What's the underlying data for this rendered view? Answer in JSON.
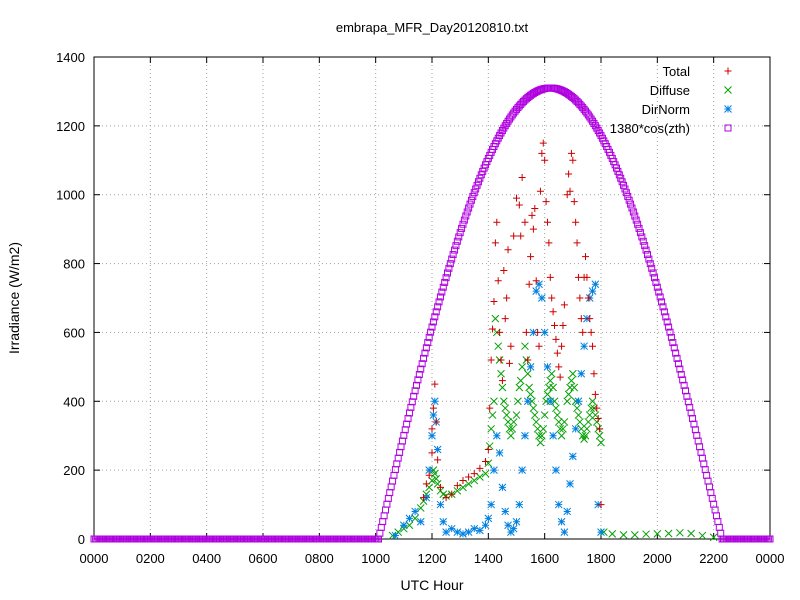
{
  "chart_data": {
    "type": "scatter",
    "title": "embrapa_MFR_Day20120810.txt",
    "xlabel": "UTC Hour",
    "ylabel": "Irradiance (W/m2)",
    "xlim": [
      0,
      24
    ],
    "ylim": [
      0,
      1400
    ],
    "xticks": [
      0,
      2,
      4,
      6,
      8,
      10,
      12,
      14,
      16,
      18,
      20,
      22,
      24
    ],
    "xtick_labels": [
      "0000",
      "0200",
      "0400",
      "0600",
      "0800",
      "1000",
      "1200",
      "1400",
      "1600",
      "1800",
      "2000",
      "2200",
      "0000"
    ],
    "yticks": [
      0,
      200,
      400,
      600,
      800,
      1000,
      1200,
      1400
    ],
    "ytick_labels": [
      "0",
      "200",
      "400",
      "600",
      "800",
      "1000",
      "1200",
      "1400"
    ],
    "grid": true,
    "legend_position": "top-right",
    "series": [
      {
        "name": "Total",
        "marker": "plus",
        "color": "#cc0000",
        "points": [
          [
            11.7,
            120
          ],
          [
            11.8,
            160
          ],
          [
            11.9,
            185
          ],
          [
            12.0,
            250
          ],
          [
            12.0,
            320
          ],
          [
            12.05,
            380
          ],
          [
            12.1,
            450
          ],
          [
            12.15,
            340
          ],
          [
            12.2,
            230
          ],
          [
            12.3,
            150
          ],
          [
            12.5,
            120
          ],
          [
            12.7,
            130
          ],
          [
            12.9,
            155
          ],
          [
            13.1,
            170
          ],
          [
            13.3,
            180
          ],
          [
            13.5,
            190
          ],
          [
            13.7,
            205
          ],
          [
            13.9,
            225
          ],
          [
            14.0,
            260
          ],
          [
            14.05,
            380
          ],
          [
            14.1,
            520
          ],
          [
            14.15,
            610
          ],
          [
            14.2,
            690
          ],
          [
            14.25,
            860
          ],
          [
            14.3,
            920
          ],
          [
            14.35,
            750
          ],
          [
            14.4,
            600
          ],
          [
            14.45,
            520
          ],
          [
            14.5,
            460
          ],
          [
            14.55,
            780
          ],
          [
            14.6,
            640
          ],
          [
            14.65,
            700
          ],
          [
            14.7,
            840
          ],
          [
            14.75,
            510
          ],
          [
            14.8,
            560
          ],
          [
            14.9,
            880
          ],
          [
            15.0,
            990
          ],
          [
            15.1,
            970
          ],
          [
            15.15,
            880
          ],
          [
            15.2,
            1050
          ],
          [
            15.3,
            920
          ],
          [
            15.35,
            600
          ],
          [
            15.4,
            520
          ],
          [
            15.45,
            740
          ],
          [
            15.5,
            820
          ],
          [
            15.55,
            940
          ],
          [
            15.6,
            900
          ],
          [
            15.65,
            960
          ],
          [
            15.7,
            750
          ],
          [
            15.75,
            600
          ],
          [
            15.8,
            560
          ],
          [
            15.85,
            1010
          ],
          [
            15.9,
            1120
          ],
          [
            15.95,
            1150
          ],
          [
            16.0,
            1100
          ],
          [
            16.05,
            980
          ],
          [
            16.1,
            920
          ],
          [
            16.15,
            860
          ],
          [
            16.2,
            760
          ],
          [
            16.25,
            700
          ],
          [
            16.3,
            660
          ],
          [
            16.35,
            620
          ],
          [
            16.4,
            580
          ],
          [
            16.45,
            540
          ],
          [
            16.5,
            500
          ],
          [
            16.55,
            470
          ],
          [
            16.6,
            560
          ],
          [
            16.65,
            620
          ],
          [
            16.7,
            680
          ],
          [
            16.8,
            1000
          ],
          [
            16.85,
            1060
          ],
          [
            16.9,
            1010
          ],
          [
            16.95,
            1120
          ],
          [
            17.0,
            1100
          ],
          [
            17.05,
            980
          ],
          [
            17.1,
            920
          ],
          [
            17.15,
            860
          ],
          [
            17.2,
            760
          ],
          [
            17.25,
            700
          ],
          [
            17.3,
            640
          ],
          [
            17.35,
            600
          ],
          [
            17.4,
            760
          ],
          [
            17.45,
            820
          ],
          [
            17.5,
            760
          ],
          [
            17.55,
            700
          ],
          [
            17.6,
            640
          ],
          [
            17.65,
            600
          ],
          [
            17.7,
            560
          ],
          [
            17.75,
            480
          ],
          [
            17.8,
            420
          ],
          [
            17.85,
            380
          ],
          [
            17.9,
            350
          ],
          [
            17.95,
            320
          ],
          [
            18.0,
            100
          ]
        ]
      },
      {
        "name": "Diffuse",
        "marker": "cross",
        "color": "#00a000",
        "points": [
          [
            10.6,
            10
          ],
          [
            10.8,
            20
          ],
          [
            11.0,
            30
          ],
          [
            11.2,
            40
          ],
          [
            11.4,
            60
          ],
          [
            11.6,
            90
          ],
          [
            11.7,
            110
          ],
          [
            11.8,
            130
          ],
          [
            11.9,
            150
          ],
          [
            12.0,
            170
          ],
          [
            12.05,
            200
          ],
          [
            12.1,
            190
          ],
          [
            12.15,
            175
          ],
          [
            12.2,
            160
          ],
          [
            12.3,
            140
          ],
          [
            12.4,
            130
          ],
          [
            12.5,
            125
          ],
          [
            12.7,
            130
          ],
          [
            12.9,
            140
          ],
          [
            13.1,
            150
          ],
          [
            13.3,
            160
          ],
          [
            13.5,
            170
          ],
          [
            13.7,
            180
          ],
          [
            13.9,
            190
          ],
          [
            14.0,
            220
          ],
          [
            14.05,
            270
          ],
          [
            14.1,
            320
          ],
          [
            14.15,
            360
          ],
          [
            14.2,
            400
          ],
          [
            14.25,
            640
          ],
          [
            14.3,
            600
          ],
          [
            14.35,
            560
          ],
          [
            14.4,
            520
          ],
          [
            14.45,
            480
          ],
          [
            14.5,
            440
          ],
          [
            14.55,
            400
          ],
          [
            14.6,
            380
          ],
          [
            14.65,
            360
          ],
          [
            14.7,
            340
          ],
          [
            14.75,
            320
          ],
          [
            14.8,
            300
          ],
          [
            14.85,
            320
          ],
          [
            14.9,
            340
          ],
          [
            15.0,
            360
          ],
          [
            15.05,
            400
          ],
          [
            15.1,
            440
          ],
          [
            15.15,
            460
          ],
          [
            15.2,
            500
          ],
          [
            15.3,
            560
          ],
          [
            15.35,
            520
          ],
          [
            15.4,
            480
          ],
          [
            15.45,
            440
          ],
          [
            15.5,
            420
          ],
          [
            15.55,
            400
          ],
          [
            15.6,
            380
          ],
          [
            15.65,
            360
          ],
          [
            15.7,
            340
          ],
          [
            15.75,
            320
          ],
          [
            15.8,
            300
          ],
          [
            15.85,
            280
          ],
          [
            15.9,
            300
          ],
          [
            15.95,
            320
          ],
          [
            16.0,
            360
          ],
          [
            16.05,
            400
          ],
          [
            16.1,
            420
          ],
          [
            16.15,
            440
          ],
          [
            16.2,
            460
          ],
          [
            16.25,
            480
          ],
          [
            16.3,
            440
          ],
          [
            16.35,
            400
          ],
          [
            16.4,
            380
          ],
          [
            16.45,
            360
          ],
          [
            16.5,
            340
          ],
          [
            16.55,
            320
          ],
          [
            16.6,
            300
          ],
          [
            16.65,
            320
          ],
          [
            16.7,
            340
          ],
          [
            16.8,
            400
          ],
          [
            16.85,
            420
          ],
          [
            16.9,
            440
          ],
          [
            16.95,
            460
          ],
          [
            17.0,
            480
          ],
          [
            17.05,
            440
          ],
          [
            17.1,
            400
          ],
          [
            17.15,
            380
          ],
          [
            17.2,
            360
          ],
          [
            17.25,
            340
          ],
          [
            17.3,
            320
          ],
          [
            17.35,
            300
          ],
          [
            17.4,
            290
          ],
          [
            17.45,
            300
          ],
          [
            17.5,
            320
          ],
          [
            17.55,
            340
          ],
          [
            17.6,
            360
          ],
          [
            17.65,
            380
          ],
          [
            17.7,
            400
          ],
          [
            17.75,
            380
          ],
          [
            17.8,
            360
          ],
          [
            17.85,
            340
          ],
          [
            17.9,
            320
          ],
          [
            17.95,
            300
          ],
          [
            18.0,
            280
          ],
          [
            18.1,
            20
          ],
          [
            18.4,
            15
          ],
          [
            18.8,
            12
          ],
          [
            19.2,
            12
          ],
          [
            19.6,
            14
          ],
          [
            20.0,
            15
          ],
          [
            20.4,
            16
          ],
          [
            20.8,
            18
          ],
          [
            21.2,
            16
          ],
          [
            21.6,
            10
          ],
          [
            22.0,
            5
          ]
        ]
      },
      {
        "name": "DirNorm",
        "marker": "star",
        "color": "#0080e0",
        "points": [
          [
            10.7,
            10
          ],
          [
            11.0,
            40
          ],
          [
            11.2,
            60
          ],
          [
            11.4,
            80
          ],
          [
            11.6,
            50
          ],
          [
            11.8,
            120
          ],
          [
            11.9,
            200
          ],
          [
            12.0,
            300
          ],
          [
            12.05,
            360
          ],
          [
            12.1,
            400
          ],
          [
            12.15,
            340
          ],
          [
            12.2,
            260
          ],
          [
            12.3,
            100
          ],
          [
            12.4,
            50
          ],
          [
            12.5,
            20
          ],
          [
            12.7,
            30
          ],
          [
            12.9,
            20
          ],
          [
            13.1,
            15
          ],
          [
            13.3,
            20
          ],
          [
            13.5,
            30
          ],
          [
            13.7,
            25
          ],
          [
            13.9,
            40
          ],
          [
            14.0,
            60
          ],
          [
            14.1,
            100
          ],
          [
            14.2,
            200
          ],
          [
            14.3,
            300
          ],
          [
            14.4,
            250
          ],
          [
            14.5,
            150
          ],
          [
            14.6,
            80
          ],
          [
            14.7,
            40
          ],
          [
            14.8,
            20
          ],
          [
            14.9,
            30
          ],
          [
            15.0,
            50
          ],
          [
            15.1,
            100
          ],
          [
            15.2,
            200
          ],
          [
            15.3,
            300
          ],
          [
            15.4,
            400
          ],
          [
            15.5,
            500
          ],
          [
            15.6,
            600
          ],
          [
            15.7,
            720
          ],
          [
            15.8,
            740
          ],
          [
            15.9,
            700
          ],
          [
            16.0,
            600
          ],
          [
            16.1,
            500
          ],
          [
            16.2,
            400
          ],
          [
            16.3,
            300
          ],
          [
            16.4,
            200
          ],
          [
            16.5,
            100
          ],
          [
            16.6,
            50
          ],
          [
            16.7,
            20
          ],
          [
            16.8,
            80
          ],
          [
            16.9,
            160
          ],
          [
            17.0,
            240
          ],
          [
            17.1,
            320
          ],
          [
            17.2,
            400
          ],
          [
            17.3,
            480
          ],
          [
            17.4,
            560
          ],
          [
            17.5,
            640
          ],
          [
            17.6,
            700
          ],
          [
            17.7,
            720
          ],
          [
            17.8,
            740
          ],
          [
            17.9,
            100
          ],
          [
            18.0,
            20
          ]
        ]
      },
      {
        "name": "1380*cos(zth)",
        "marker": "square",
        "color": "#b000e0",
        "points": [
          [
            0,
            0
          ],
          [
            10.1,
            0
          ],
          [
            16.2,
            1310
          ],
          [
            22.3,
            0
          ],
          [
            24,
            0
          ]
        ]
      }
    ]
  }
}
